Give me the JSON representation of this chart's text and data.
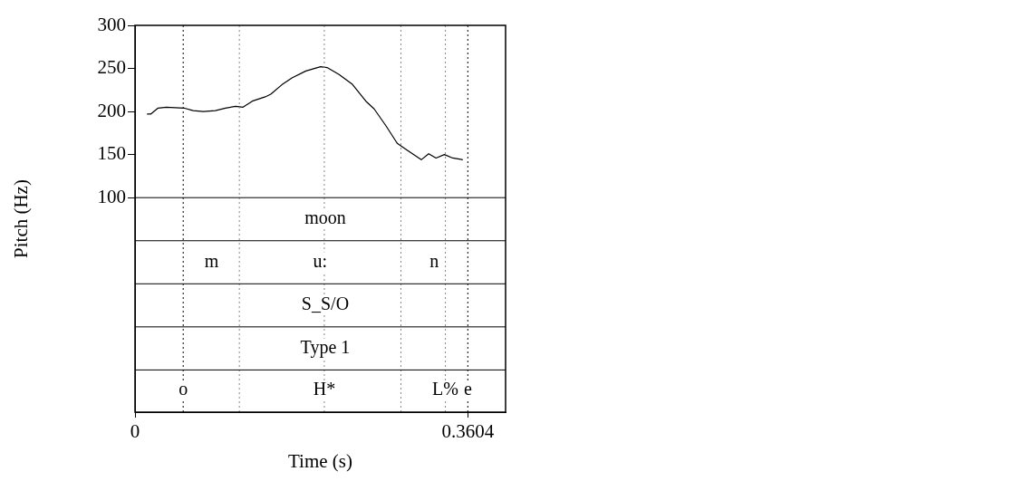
{
  "chart_data": {
    "type": "line",
    "xlabel": "Time (s)",
    "ylabel": "Pitch (Hz)",
    "x": [
      0.013,
      0.017,
      0.025,
      0.034,
      0.053,
      0.063,
      0.074,
      0.087,
      0.098,
      0.109,
      0.117,
      0.127,
      0.141,
      0.147,
      0.159,
      0.17,
      0.185,
      0.201,
      0.208,
      0.221,
      0.235,
      0.25,
      0.259,
      0.272,
      0.284,
      0.295,
      0.31,
      0.318,
      0.326,
      0.335,
      0.344,
      0.355
    ],
    "series": [
      {
        "color": "#000000",
        "values": [
          197,
          197,
          204,
          205,
          204,
          201,
          200,
          201,
          204,
          206,
          205,
          212,
          217,
          220,
          231,
          239,
          247,
          252,
          251,
          243,
          232,
          212,
          203,
          183,
          163,
          155,
          144,
          151,
          146,
          150,
          146,
          144
        ]
      }
    ],
    "xlim": [
      0,
      0.4013
    ],
    "xticks": [
      0,
      0.3604
    ],
    "ylim": [
      -149,
      300
    ],
    "yticks": [
      100,
      150,
      200,
      250,
      300
    ],
    "marker": "none",
    "line_style": "solid",
    "ref_lines": [
      {
        "axis": "x",
        "value": 0.0522,
        "color": "#000000",
        "line_style": "dotted"
      },
      {
        "axis": "x",
        "value": 0.113,
        "color": "#888888",
        "line_style": "dotted"
      },
      {
        "axis": "x",
        "value": 0.205,
        "color": "#888888",
        "line_style": "dotted"
      },
      {
        "axis": "x",
        "value": 0.288,
        "color": "#888888",
        "line_style": "dotted"
      },
      {
        "axis": "x",
        "value": 0.3361,
        "color": "#888888",
        "line_style": "dotted"
      },
      {
        "axis": "x",
        "value": 0.3604,
        "color": "#000000",
        "line_style": "dotted"
      },
      {
        "axis": "y",
        "value": 100,
        "color": "#000000",
        "line_style": "solid"
      },
      {
        "axis": "y",
        "value": 50,
        "color": "#000000",
        "line_style": "solid"
      },
      {
        "axis": "y",
        "value": 0,
        "color": "#000000",
        "line_style": "solid"
      },
      {
        "axis": "y",
        "value": -50,
        "color": "#000000",
        "line_style": "solid"
      },
      {
        "axis": "y",
        "value": -100,
        "color": "#000000",
        "line_style": "solid"
      }
    ],
    "annotations": [
      {
        "text": "moon",
        "x": 0.206,
        "y": 75
      },
      {
        "text": "m",
        "x": 0.083,
        "y": 25
      },
      {
        "text": "u:",
        "x": 0.2005,
        "y": 25
      },
      {
        "text": "n",
        "x": 0.324,
        "y": 25
      },
      {
        "text": "S_S/O",
        "x": 0.206,
        "y": -25
      },
      {
        "text": "Type 1",
        "x": 0.206,
        "y": -75
      },
      {
        "text": "o",
        "x": 0.0522,
        "y": -124
      },
      {
        "text": "H*",
        "x": 0.205,
        "y": -124
      },
      {
        "text": "L%",
        "x": 0.3361,
        "y": -124
      },
      {
        "text": "e",
        "x": 0.3604,
        "y": -124
      }
    ]
  }
}
